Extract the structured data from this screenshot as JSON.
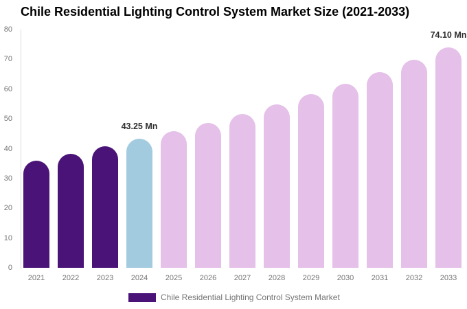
{
  "page": {
    "title": "Chile Residential Lighting Control System Market Size (2021-2033)"
  },
  "colors": {
    "historical": "#4A1377",
    "base_year": "#A3CBE0",
    "forecast": "#E5C0E9",
    "axis_text": "#757575",
    "axis_line": "#DBDBDB",
    "annotation_text": "#2E2E2E",
    "title_text": "#000000"
  },
  "chart_data": {
    "type": "bar",
    "title": "Chile Residential Lighting Control System Market Size (2021-2033)",
    "unit": "Mn",
    "categories": [
      "2021",
      "2022",
      "2023",
      "2024",
      "2025",
      "2026",
      "2027",
      "2028",
      "2029",
      "2030",
      "2031",
      "2032",
      "2033"
    ],
    "values": [
      36.07,
      38.29,
      40.74,
      43.25,
      45.91,
      48.74,
      51.74,
      54.93,
      58.31,
      61.9,
      65.71,
      69.76,
      74.1
    ],
    "bar_roles": [
      "historical",
      "historical",
      "historical",
      "base_year",
      "forecast",
      "forecast",
      "forecast",
      "forecast",
      "forecast",
      "forecast",
      "forecast",
      "forecast",
      "forecast"
    ],
    "ylim": [
      0,
      80
    ],
    "yticks": [
      0,
      10,
      20,
      30,
      40,
      50,
      60,
      70,
      80
    ],
    "xlabel": "",
    "ylabel": "",
    "grid": false,
    "legend_position": "bottom",
    "annotations": [
      {
        "index": 3,
        "label": "43.25 Mn"
      },
      {
        "index": 12,
        "label": "74.10 Mn"
      }
    ]
  },
  "legend": {
    "label": "Chile Residential Lighting Control System Market"
  }
}
